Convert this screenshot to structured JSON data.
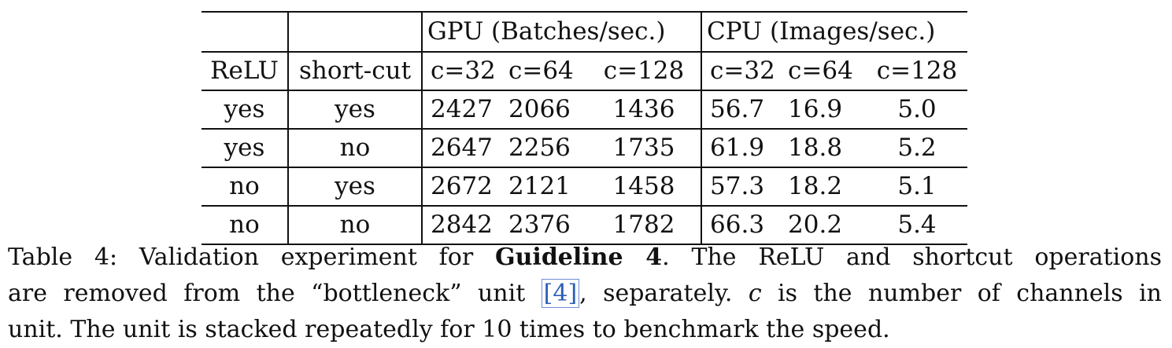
{
  "table": {
    "group_headers": {
      "gpu": "GPU (Batches/sec.)",
      "cpu": "CPU (Images/sec.)"
    },
    "column_headers": {
      "relu": "ReLU",
      "shortcut": "short-cut",
      "gpu_c32": "c=32",
      "gpu_c64": "c=64",
      "gpu_c128": "c=128",
      "cpu_c32": "c=32",
      "cpu_c64": "c=64",
      "cpu_c128": "c=128"
    },
    "rows": [
      {
        "relu": "yes",
        "shortcut": "yes",
        "gpu_c32": "2427",
        "gpu_c64": "2066",
        "gpu_c128": "1436",
        "cpu_c32": "56.7",
        "cpu_c64": "16.9",
        "cpu_c128": "5.0"
      },
      {
        "relu": "yes",
        "shortcut": "no",
        "gpu_c32": "2647",
        "gpu_c64": "2256",
        "gpu_c128": "1735",
        "cpu_c32": "61.9",
        "cpu_c64": "18.8",
        "cpu_c128": "5.2"
      },
      {
        "relu": "no",
        "shortcut": "yes",
        "gpu_c32": "2672",
        "gpu_c64": "2121",
        "gpu_c128": "1458",
        "cpu_c32": "57.3",
        "cpu_c64": "18.2",
        "cpu_c128": "5.1"
      },
      {
        "relu": "no",
        "shortcut": "no",
        "gpu_c32": "2842",
        "gpu_c64": "2376",
        "gpu_c128": "1782",
        "cpu_c32": "66.3",
        "cpu_c64": "20.2",
        "cpu_c128": "5.4"
      }
    ]
  },
  "caption": {
    "label": "Table 4:",
    "text_before_bold": " Validation experiment for ",
    "bold": "Guideline 4",
    "text_after_bold": ". The ReLU and shortcut operations are removed from the “bottleneck” unit ",
    "citation": "[4]",
    "text_after_cite": ", separately. ",
    "italic_var": "c",
    "text_end_1": " is the number of channels in unit. The unit is stacked repeatedly for 10 times to benchmark the speed.",
    "line1": "Table 4: Validation experiment for",
    "line1_bold": "Guideline 4",
    "line1_end": ". The ReLU and shortcut operations",
    "line2_start": "are removed from the “bottleneck” unit",
    "line2_end": ", separately.",
    "line2_tail": "is the number of channels in",
    "line3": "unit. The unit is stacked repeatedly for 10 times to benchmark the speed."
  }
}
